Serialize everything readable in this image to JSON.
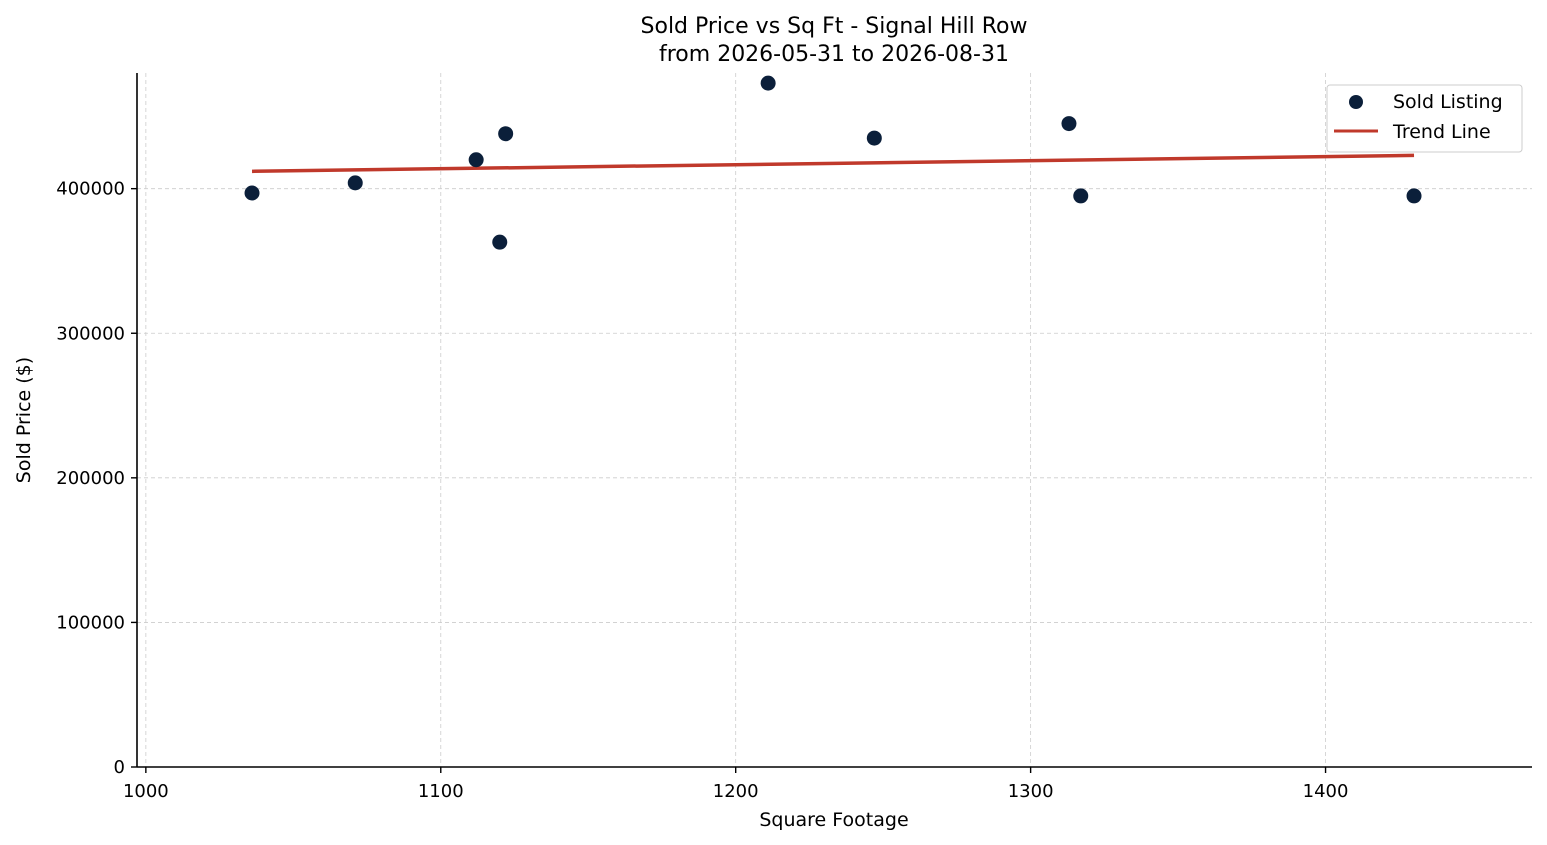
{
  "chart_data": {
    "type": "scatter",
    "title": "Sold Price vs Sq Ft - Signal Hill Row",
    "subtitle": "from 2026-05-31 to 2026-08-31",
    "xlabel": "Square Footage",
    "ylabel": "Sold Price ($)",
    "xlim": [
      997,
      1470
    ],
    "ylim": [
      0,
      480000
    ],
    "x_ticks": [
      1000,
      1100,
      1200,
      1300,
      1400
    ],
    "y_ticks": [
      0,
      100000,
      200000,
      300000,
      400000
    ],
    "grid": true,
    "legend_position": "top-right",
    "series": [
      {
        "name": "Sold Listing",
        "kind": "scatter",
        "color": "#0b1f3a",
        "points": [
          {
            "x": 1036,
            "y": 397000
          },
          {
            "x": 1071,
            "y": 404000
          },
          {
            "x": 1112,
            "y": 420000
          },
          {
            "x": 1120,
            "y": 363000
          },
          {
            "x": 1122,
            "y": 438000
          },
          {
            "x": 1211,
            "y": 473000
          },
          {
            "x": 1247,
            "y": 435000
          },
          {
            "x": 1313,
            "y": 445000
          },
          {
            "x": 1317,
            "y": 395000
          },
          {
            "x": 1430,
            "y": 395000
          }
        ]
      },
      {
        "name": "Trend Line",
        "kind": "line",
        "color": "#c0392b",
        "points": [
          {
            "x": 1036,
            "y": 412000
          },
          {
            "x": 1430,
            "y": 423000
          }
        ]
      }
    ]
  }
}
